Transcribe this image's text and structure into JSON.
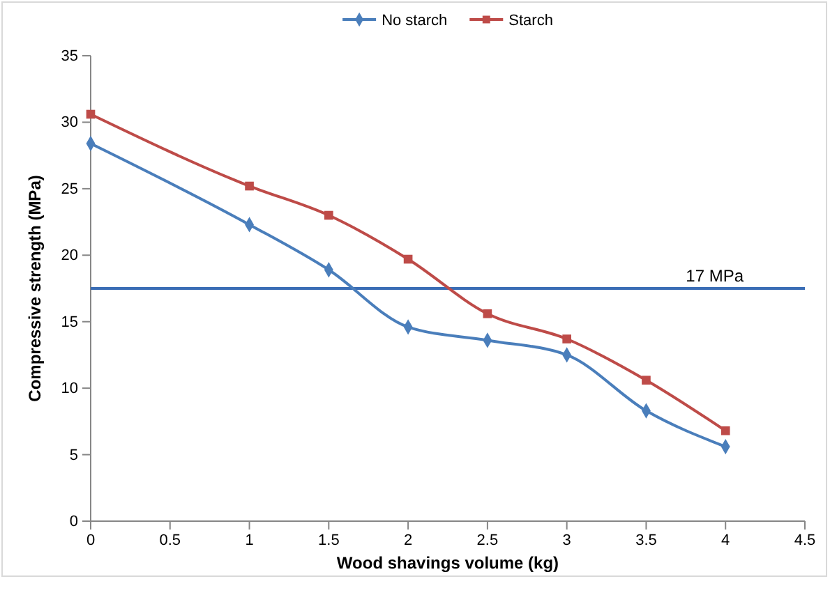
{
  "chart_data": {
    "type": "line",
    "xlabel": "Wood shavings volume (kg)",
    "ylabel": "Compressive strength (MPa)",
    "x": [
      0,
      1,
      1.5,
      2,
      2.5,
      3,
      3.5,
      4
    ],
    "series": [
      {
        "name": "No starch",
        "color": "#4a7ebb",
        "marker": "diamond",
        "values": [
          28.4,
          22.3,
          18.9,
          14.6,
          13.6,
          12.5,
          8.3,
          5.6
        ]
      },
      {
        "name": "Starch",
        "color": "#be4b48",
        "marker": "square",
        "values": [
          30.6,
          25.2,
          23.0,
          19.7,
          15.6,
          13.7,
          10.6,
          6.8
        ]
      }
    ],
    "xlim": [
      0,
      4.5
    ],
    "xticks": [
      0,
      0.5,
      1,
      1.5,
      2,
      2.5,
      3,
      3.5,
      4,
      4.5
    ],
    "ylim": [
      0,
      35
    ],
    "yticks": [
      0,
      5,
      10,
      15,
      20,
      25,
      30,
      35
    ],
    "ref_lines": [
      {
        "axis": "y",
        "value": 17.5,
        "label": "17 MPa",
        "color": "#3a6db5"
      }
    ],
    "legend": "top",
    "grid": false
  }
}
